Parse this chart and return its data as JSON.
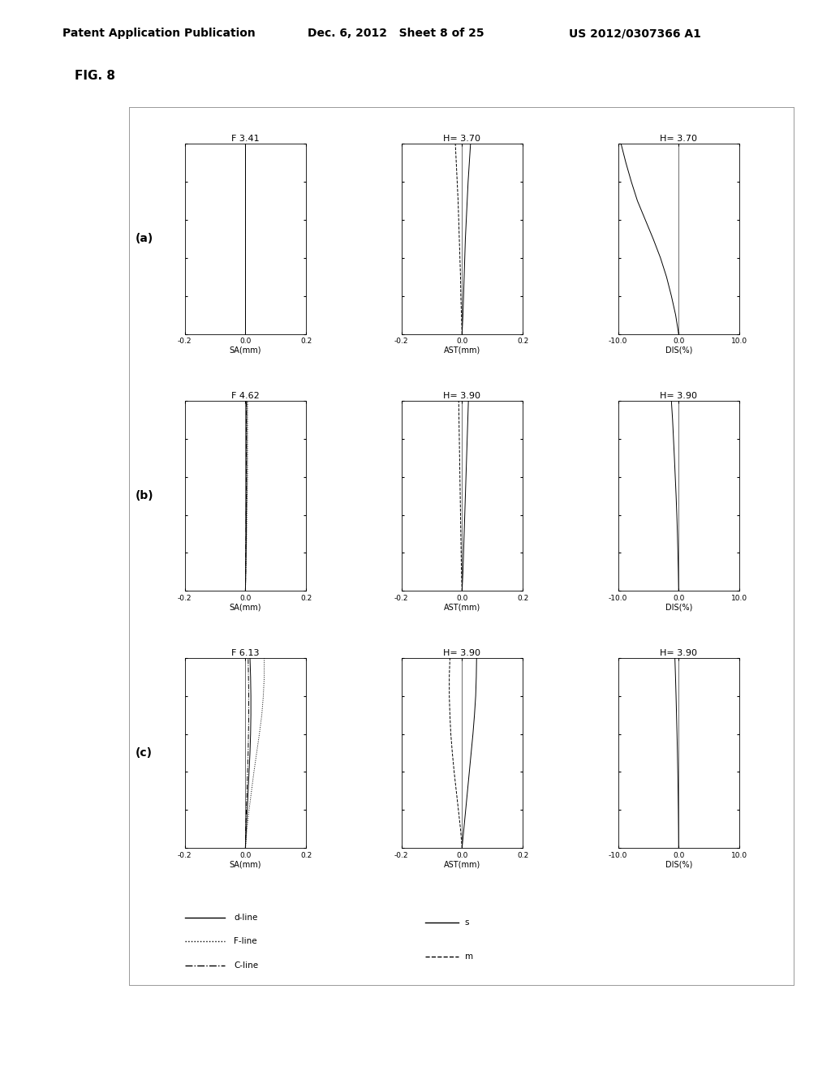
{
  "header_left": "Patent Application Publication",
  "header_mid": "Dec. 6, 2012   Sheet 8 of 25",
  "header_right": "US 2012/0307366 A1",
  "fig_label": "FIG. 8",
  "rows": [
    {
      "label": "(a)",
      "sa_title": "F 3.41",
      "ast_title": "H= 3.70",
      "dis_title": "H= 3.70",
      "sa_xlim": [
        -0.2,
        0.2
      ],
      "ast_xlim": [
        -0.2,
        0.2
      ],
      "dis_xlim": [
        -10.0,
        10.0
      ],
      "sa_d": {
        "x": [
          0.0,
          0.0,
          0.0,
          0.0,
          0.0,
          0.0,
          0.0,
          0.0,
          0.0,
          0.0,
          0.0
        ],
        "y": [
          0.0,
          0.1,
          0.2,
          0.3,
          0.4,
          0.5,
          0.6,
          0.7,
          0.8,
          0.9,
          1.0
        ]
      },
      "sa_f": {
        "x": [
          0.0,
          0.0,
          0.0,
          0.0,
          0.0,
          0.0,
          0.0,
          0.0,
          0.0,
          0.0,
          0.0
        ],
        "y": [
          0.0,
          0.1,
          0.2,
          0.3,
          0.4,
          0.5,
          0.6,
          0.7,
          0.8,
          0.9,
          1.0
        ]
      },
      "sa_c": {
        "x": [
          0.0,
          0.0,
          0.0,
          0.0,
          0.0,
          0.0,
          0.0,
          0.0,
          0.0,
          0.0,
          0.0
        ],
        "y": [
          0.0,
          0.1,
          0.2,
          0.3,
          0.4,
          0.5,
          0.6,
          0.7,
          0.8,
          0.9,
          1.0
        ]
      },
      "ast_s": {
        "x": [
          0.0,
          0.003,
          0.005,
          0.007,
          0.009,
          0.011,
          0.014,
          0.017,
          0.02,
          0.024,
          0.028
        ],
        "y": [
          0.0,
          0.1,
          0.2,
          0.3,
          0.4,
          0.5,
          0.6,
          0.7,
          0.8,
          0.9,
          1.0
        ]
      },
      "ast_m": {
        "x": [
          0.0,
          -0.002,
          -0.004,
          -0.005,
          -0.007,
          -0.009,
          -0.011,
          -0.013,
          -0.016,
          -0.019,
          -0.022
        ],
        "y": [
          0.0,
          0.1,
          0.2,
          0.3,
          0.4,
          0.5,
          0.6,
          0.7,
          0.8,
          0.9,
          1.0
        ]
      },
      "dis_s": {
        "x": [
          0.0,
          -0.5,
          -1.2,
          -2.0,
          -3.0,
          -4.2,
          -5.5,
          -6.8,
          -7.8,
          -8.7,
          -9.5
        ],
        "y": [
          0.0,
          0.1,
          0.2,
          0.3,
          0.4,
          0.5,
          0.6,
          0.7,
          0.8,
          0.9,
          1.0
        ]
      }
    },
    {
      "label": "(b)",
      "sa_title": "F 4.62",
      "ast_title": "H= 3.90",
      "dis_title": "H= 3.90",
      "sa_xlim": [
        -0.2,
        0.2
      ],
      "ast_xlim": [
        -0.2,
        0.2
      ],
      "dis_xlim": [
        -10.0,
        10.0
      ],
      "sa_d": {
        "x": [
          0.0,
          0.001,
          0.002,
          0.003,
          0.003,
          0.004,
          0.004,
          0.004,
          0.004,
          0.004,
          0.004
        ],
        "y": [
          0.0,
          0.1,
          0.2,
          0.3,
          0.4,
          0.5,
          0.6,
          0.7,
          0.8,
          0.9,
          1.0
        ]
      },
      "sa_f": {
        "x": [
          0.0,
          0.001,
          0.003,
          0.004,
          0.005,
          0.006,
          0.007,
          0.007,
          0.007,
          0.007,
          0.007
        ],
        "y": [
          0.0,
          0.1,
          0.2,
          0.3,
          0.4,
          0.5,
          0.6,
          0.7,
          0.8,
          0.9,
          1.0
        ]
      },
      "sa_c": {
        "x": [
          0.0,
          0.001,
          0.001,
          0.002,
          0.002,
          0.003,
          0.003,
          0.003,
          0.003,
          0.003,
          0.003
        ],
        "y": [
          0.0,
          0.1,
          0.2,
          0.3,
          0.4,
          0.5,
          0.6,
          0.7,
          0.8,
          0.9,
          1.0
        ]
      },
      "ast_s": {
        "x": [
          0.0,
          0.003,
          0.005,
          0.007,
          0.009,
          0.011,
          0.013,
          0.015,
          0.017,
          0.019,
          0.021
        ],
        "y": [
          0.0,
          0.1,
          0.2,
          0.3,
          0.4,
          0.5,
          0.6,
          0.7,
          0.8,
          0.9,
          1.0
        ]
      },
      "ast_m": {
        "x": [
          0.0,
          -0.002,
          -0.003,
          -0.004,
          -0.005,
          -0.006,
          -0.007,
          -0.008,
          -0.009,
          -0.01,
          -0.011
        ],
        "y": [
          0.0,
          0.1,
          0.2,
          0.3,
          0.4,
          0.5,
          0.6,
          0.7,
          0.8,
          0.9,
          1.0
        ]
      },
      "dis_s": {
        "x": [
          0.0,
          -0.05,
          -0.12,
          -0.2,
          -0.3,
          -0.42,
          -0.56,
          -0.7,
          -0.85,
          -1.0,
          -1.2
        ],
        "y": [
          0.0,
          0.1,
          0.2,
          0.3,
          0.4,
          0.5,
          0.6,
          0.7,
          0.8,
          0.9,
          1.0
        ]
      }
    },
    {
      "label": "(c)",
      "sa_title": "F 6.13",
      "ast_title": "H= 3.90",
      "dis_title": "H= 3.90",
      "sa_xlim": [
        -0.2,
        0.2
      ],
      "ast_xlim": [
        -0.2,
        0.2
      ],
      "dis_xlim": [
        -10.0,
        10.0
      ],
      "sa_d": {
        "x": [
          0.0,
          0.003,
          0.006,
          0.009,
          0.012,
          0.015,
          0.017,
          0.018,
          0.018,
          0.017,
          0.015
        ],
        "y": [
          0.0,
          0.1,
          0.2,
          0.3,
          0.4,
          0.5,
          0.6,
          0.7,
          0.8,
          0.9,
          1.0
        ]
      },
      "sa_f": {
        "x": [
          0.0,
          0.005,
          0.012,
          0.02,
          0.028,
          0.037,
          0.046,
          0.054,
          0.059,
          0.062,
          0.062
        ],
        "y": [
          0.0,
          0.1,
          0.2,
          0.3,
          0.4,
          0.5,
          0.6,
          0.7,
          0.8,
          0.9,
          1.0
        ]
      },
      "sa_c": {
        "x": [
          0.0,
          0.001,
          0.003,
          0.005,
          0.007,
          0.009,
          0.01,
          0.011,
          0.011,
          0.01,
          0.009
        ],
        "y": [
          0.0,
          0.1,
          0.2,
          0.3,
          0.4,
          0.5,
          0.6,
          0.7,
          0.8,
          0.9,
          1.0
        ]
      },
      "ast_s": {
        "x": [
          0.0,
          0.006,
          0.012,
          0.018,
          0.024,
          0.03,
          0.036,
          0.041,
          0.045,
          0.047,
          0.048
        ],
        "y": [
          0.0,
          0.1,
          0.2,
          0.3,
          0.4,
          0.5,
          0.6,
          0.7,
          0.8,
          0.9,
          1.0
        ]
      },
      "ast_m": {
        "x": [
          0.0,
          -0.005,
          -0.012,
          -0.019,
          -0.026,
          -0.032,
          -0.037,
          -0.04,
          -0.042,
          -0.042,
          -0.04
        ],
        "y": [
          0.0,
          0.1,
          0.2,
          0.3,
          0.4,
          0.5,
          0.6,
          0.7,
          0.8,
          0.9,
          1.0
        ]
      },
      "dis_s": {
        "x": [
          0.0,
          -0.02,
          -0.05,
          -0.09,
          -0.14,
          -0.2,
          -0.27,
          -0.35,
          -0.43,
          -0.52,
          -0.62
        ],
        "y": [
          0.0,
          0.1,
          0.2,
          0.3,
          0.4,
          0.5,
          0.6,
          0.7,
          0.8,
          0.9,
          1.0
        ]
      }
    }
  ],
  "legend_sa": [
    {
      "label": "d-line",
      "linestyle": "solid"
    },
    {
      "label": "F-line",
      "linestyle": "dotted"
    },
    {
      "label": "C-line",
      "linestyle": "dashdot"
    }
  ],
  "legend_ast": [
    {
      "label": "s",
      "linestyle": "solid"
    },
    {
      "label": "m",
      "linestyle": "dashed"
    }
  ],
  "background_color": "#ffffff",
  "line_color": "#000000",
  "fontsize_header": 10,
  "fontsize_figlabel": 11,
  "fontsize_title": 8,
  "fontsize_label": 7,
  "fontsize_tick": 6.5,
  "fontsize_legend": 7.5,
  "fontsize_rowlabel": 10
}
